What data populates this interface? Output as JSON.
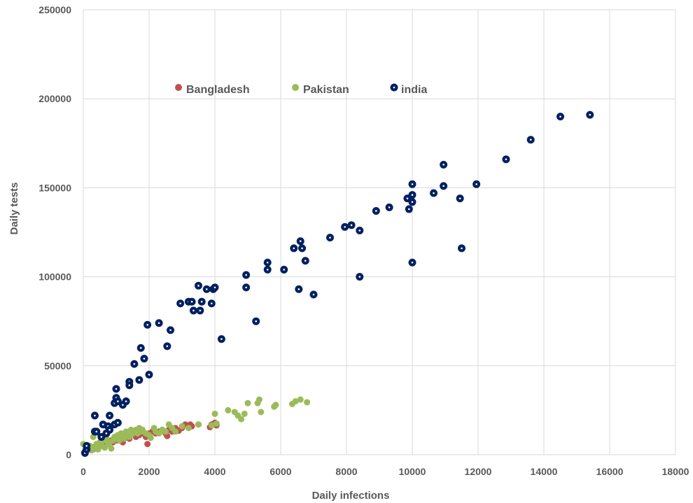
{
  "chart_data": {
    "type": "scatter",
    "xlabel": "Daily infections",
    "ylabel": "Daily tests",
    "xlim": [
      0,
      18000
    ],
    "ylim": [
      0,
      250000
    ],
    "xticks": [
      0,
      2000,
      4000,
      6000,
      8000,
      10000,
      12000,
      14000,
      16000,
      18000
    ],
    "yticks": [
      0,
      50000,
      100000,
      150000,
      200000,
      250000
    ],
    "grid": true,
    "legend_position": "top-center",
    "series": [
      {
        "name": "Bangladesh",
        "color": "#c0504d",
        "marker": "dot",
        "points": [
          [
            50,
            1500
          ],
          [
            100,
            2500
          ],
          [
            150,
            3000
          ],
          [
            200,
            3500
          ],
          [
            250,
            4000
          ],
          [
            300,
            3000
          ],
          [
            350,
            4500
          ],
          [
            400,
            5000
          ],
          [
            450,
            4000
          ],
          [
            500,
            5500
          ],
          [
            550,
            6000
          ],
          [
            600,
            5000
          ],
          [
            650,
            6500
          ],
          [
            700,
            7000
          ],
          [
            750,
            6000
          ],
          [
            800,
            7500
          ],
          [
            850,
            8000
          ],
          [
            900,
            7000
          ],
          [
            950,
            8500
          ],
          [
            1000,
            9000
          ],
          [
            1050,
            8000
          ],
          [
            1100,
            9500
          ],
          [
            1150,
            10000
          ],
          [
            1200,
            7000
          ],
          [
            1300,
            11000
          ],
          [
            1400,
            9000
          ],
          [
            1500,
            12000
          ],
          [
            1600,
            10000
          ],
          [
            1700,
            11000
          ],
          [
            1800,
            12000
          ],
          [
            1900,
            10000
          ],
          [
            1950,
            6000
          ],
          [
            2000,
            12000
          ],
          [
            2100,
            13000
          ],
          [
            2200,
            12000
          ],
          [
            2300,
            13000
          ],
          [
            2400,
            14000
          ],
          [
            2500,
            12000
          ],
          [
            2550,
            10500
          ],
          [
            2600,
            14000
          ],
          [
            2700,
            13000
          ],
          [
            2800,
            15000
          ],
          [
            2900,
            13500
          ],
          [
            3000,
            15000
          ],
          [
            3100,
            17000
          ],
          [
            3200,
            16000
          ],
          [
            3250,
            17000
          ],
          [
            3300,
            16000
          ],
          [
            3500,
            17000
          ],
          [
            3850,
            15500
          ],
          [
            3900,
            17000
          ],
          [
            4000,
            18000
          ],
          [
            4050,
            16500
          ]
        ]
      },
      {
        "name": "Pakistan",
        "color": "#9bbb59",
        "marker": "dot",
        "points": [
          [
            0,
            6000
          ],
          [
            50,
            2000
          ],
          [
            100,
            3000
          ],
          [
            150,
            4000
          ],
          [
            200,
            5000
          ],
          [
            250,
            2500
          ],
          [
            300,
            10000
          ],
          [
            350,
            4000
          ],
          [
            400,
            6000
          ],
          [
            450,
            3000
          ],
          [
            500,
            7000
          ],
          [
            550,
            5000
          ],
          [
            600,
            8000
          ],
          [
            650,
            4000
          ],
          [
            700,
            9000
          ],
          [
            750,
            6000
          ],
          [
            800,
            7000
          ],
          [
            850,
            3500
          ],
          [
            900,
            8000
          ],
          [
            950,
            10000
          ],
          [
            1000,
            9000
          ],
          [
            1050,
            11000
          ],
          [
            1100,
            8000
          ],
          [
            1150,
            12000
          ],
          [
            1200,
            10000
          ],
          [
            1250,
            9000
          ],
          [
            1300,
            13000
          ],
          [
            1350,
            11000
          ],
          [
            1400,
            10000
          ],
          [
            1450,
            14000
          ],
          [
            1500,
            12000
          ],
          [
            1550,
            13000
          ],
          [
            1600,
            14000
          ],
          [
            1650,
            12000
          ],
          [
            1700,
            15000
          ],
          [
            1750,
            13000
          ],
          [
            1800,
            14000
          ],
          [
            1900,
            12000
          ],
          [
            2000,
            11000
          ],
          [
            2050,
            9500
          ],
          [
            2150,
            15000
          ],
          [
            2200,
            13000
          ],
          [
            2300,
            12000
          ],
          [
            2400,
            14000
          ],
          [
            2500,
            13000
          ],
          [
            2600,
            17000
          ],
          [
            2700,
            15000
          ],
          [
            2800,
            13000
          ],
          [
            3000,
            16000
          ],
          [
            3200,
            15000
          ],
          [
            3500,
            17000
          ],
          [
            3900,
            16500
          ],
          [
            4000,
            23000
          ],
          [
            4050,
            17500
          ],
          [
            4400,
            25000
          ],
          [
            4600,
            24000
          ],
          [
            4700,
            22000
          ],
          [
            4800,
            20000
          ],
          [
            4900,
            23000
          ],
          [
            5000,
            29000
          ],
          [
            5300,
            29000
          ],
          [
            5350,
            31000
          ],
          [
            5400,
            24000
          ],
          [
            5800,
            27000
          ],
          [
            5850,
            28000
          ],
          [
            6350,
            28500
          ],
          [
            6450,
            30000
          ],
          [
            6600,
            31000
          ],
          [
            6800,
            29500
          ]
        ]
      },
      {
        "name": "india",
        "color": "#002060",
        "marker": "ring",
        "points": [
          [
            50,
            1000
          ],
          [
            100,
            3000
          ],
          [
            100,
            5000
          ],
          [
            350,
            13000
          ],
          [
            350,
            22000
          ],
          [
            400,
            13000
          ],
          [
            550,
            10000
          ],
          [
            600,
            17000
          ],
          [
            700,
            12000
          ],
          [
            750,
            16000
          ],
          [
            800,
            14000
          ],
          [
            800,
            22000
          ],
          [
            950,
            17000
          ],
          [
            950,
            29000
          ],
          [
            1000,
            37000
          ],
          [
            1000,
            32000
          ],
          [
            1050,
            18000
          ],
          [
            1050,
            30000
          ],
          [
            1200,
            28000
          ],
          [
            1300,
            30000
          ],
          [
            1400,
            41000
          ],
          [
            1400,
            39000
          ],
          [
            1550,
            51000
          ],
          [
            1700,
            42000
          ],
          [
            1750,
            60000
          ],
          [
            1850,
            54000
          ],
          [
            1950,
            73000
          ],
          [
            2000,
            45000
          ],
          [
            2300,
            74000
          ],
          [
            2550,
            61000
          ],
          [
            2650,
            70000
          ],
          [
            2950,
            85000
          ],
          [
            3200,
            86000
          ],
          [
            3300,
            86000
          ],
          [
            3350,
            81000
          ],
          [
            3500,
            95000
          ],
          [
            3550,
            81000
          ],
          [
            3600,
            86000
          ],
          [
            3750,
            93000
          ],
          [
            3900,
            85000
          ],
          [
            3950,
            93000
          ],
          [
            4000,
            94000
          ],
          [
            4200,
            65000
          ],
          [
            4950,
            101000
          ],
          [
            4950,
            94000
          ],
          [
            5250,
            75000
          ],
          [
            5600,
            104000
          ],
          [
            5600,
            108000
          ],
          [
            6100,
            104000
          ],
          [
            6400,
            116000
          ],
          [
            6550,
            93000
          ],
          [
            6600,
            120000
          ],
          [
            6650,
            116000
          ],
          [
            6750,
            109000
          ],
          [
            7000,
            90000
          ],
          [
            7500,
            122000
          ],
          [
            7950,
            128000
          ],
          [
            8150,
            129000
          ],
          [
            8400,
            126000
          ],
          [
            8400,
            100000
          ],
          [
            8900,
            137000
          ],
          [
            9300,
            139000
          ],
          [
            9850,
            144000
          ],
          [
            9900,
            138000
          ],
          [
            10000,
            152000
          ],
          [
            10000,
            108000
          ],
          [
            10000,
            146000
          ],
          [
            10000,
            142000
          ],
          [
            10650,
            147000
          ],
          [
            10950,
            151000
          ],
          [
            10950,
            163000
          ],
          [
            11450,
            144000
          ],
          [
            11500,
            116000
          ],
          [
            11950,
            152000
          ],
          [
            12850,
            166000
          ],
          [
            13600,
            177000
          ],
          [
            14500,
            190000
          ],
          [
            15400,
            191000
          ]
        ]
      }
    ]
  }
}
